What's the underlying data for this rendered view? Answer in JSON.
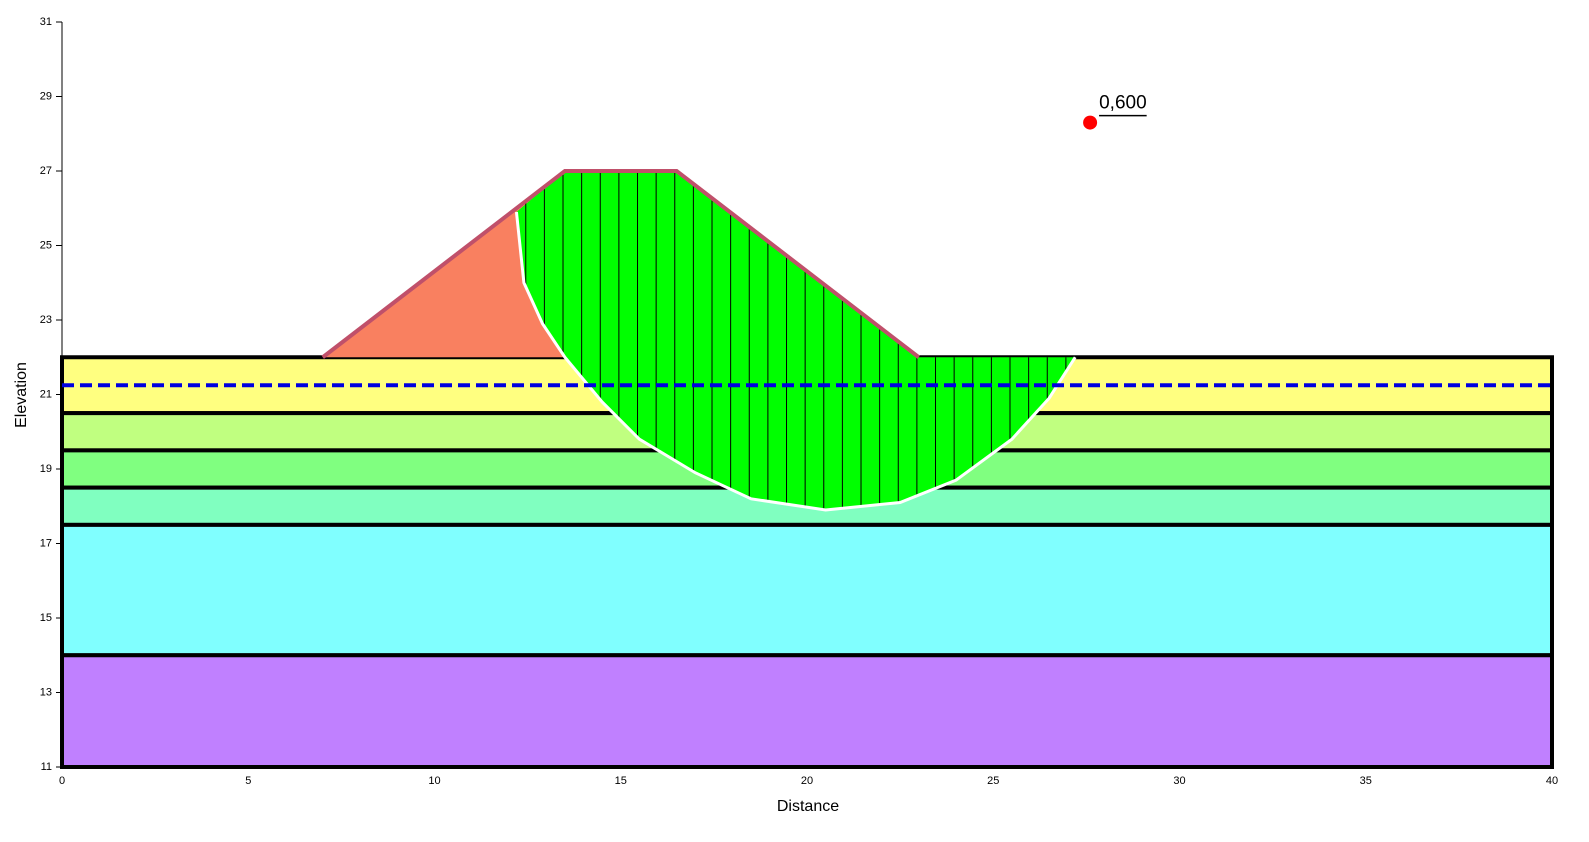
{
  "chart_data": {
    "type": "slope",
    "x_label": "Distance",
    "y_label": "Elevation",
    "xlim": [
      0,
      40
    ],
    "ylim": [
      11,
      31
    ],
    "xticks": [
      0,
      5,
      10,
      15,
      20,
      25,
      30,
      35,
      40
    ],
    "yticks": [
      11,
      13,
      15,
      17,
      19,
      21,
      23,
      25,
      27,
      29,
      31
    ],
    "layers": [
      {
        "top": 22,
        "bottom": 20.5,
        "color": "#ffff80"
      },
      {
        "top": 20.5,
        "bottom": 19.5,
        "color": "#c0ff80"
      },
      {
        "top": 19.5,
        "bottom": 18.5,
        "color": "#80ff80"
      },
      {
        "top": 18.5,
        "bottom": 17.5,
        "color": "#80ffc0"
      },
      {
        "top": 17.5,
        "bottom": 14,
        "color": "#80ffff"
      },
      {
        "top": 14,
        "bottom": 11,
        "color": "#c080ff"
      }
    ],
    "embankment_color": "#f98060",
    "ground_surface": {
      "x": [
        0,
        7,
        13.5,
        16.5,
        23,
        40
      ],
      "y": [
        22,
        22,
        27,
        27,
        22,
        22
      ],
      "color": "#c0506a"
    },
    "water_table": {
      "y": 21.25,
      "color": "#0000e0"
    },
    "slip_surface": {
      "x": [
        12.2,
        12.4,
        12.9,
        13.5,
        14.5,
        15.5,
        17,
        18.5,
        20.5,
        22.5,
        24,
        25.5,
        26.5,
        27.2
      ],
      "y": [
        25.9,
        24,
        22.9,
        22,
        20.8,
        19.8,
        18.9,
        18.2,
        17.9,
        18.1,
        18.7,
        19.8,
        20.9,
        22
      ],
      "color": "#ffffff",
      "fill": "#00ff00"
    },
    "critical_point": {
      "x": 27.6,
      "y": 28.3,
      "label": "0,600",
      "color": "#ff0000"
    }
  }
}
